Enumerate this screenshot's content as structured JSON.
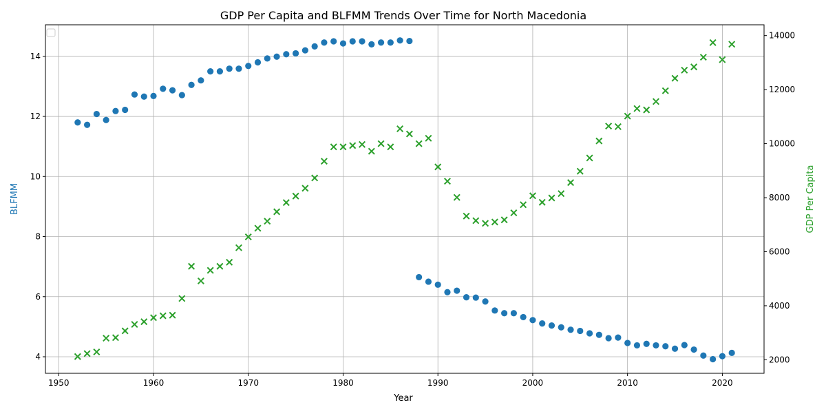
{
  "chart_data": {
    "type": "scatter",
    "title": "GDP Per Capita and BLFMM Trends Over Time for North Macedonia",
    "xlabel": "Year",
    "ylabel_left": "BLFMM",
    "ylabel_right": "GDP Per Capita",
    "xlim": [
      1948.6,
      2024.4
    ],
    "ylim_left": [
      3.45,
      15.05
    ],
    "ylim_right": [
      1500,
      14400
    ],
    "x_ticks": [
      1950,
      1960,
      1970,
      1980,
      1990,
      2000,
      2010,
      2020
    ],
    "y_ticks_left": [
      4,
      6,
      8,
      10,
      12,
      14
    ],
    "y_ticks_right": [
      2000,
      4000,
      6000,
      8000,
      10000,
      12000,
      14000
    ],
    "grid": true,
    "legend": "top-left",
    "colors": {
      "blfmm": "#1f77b4",
      "gdp": "#2ca02c",
      "grid": "#b0b0b0"
    },
    "series": [
      {
        "axis": "left",
        "marker": "circle",
        "points": [
          [
            1952,
            11.8
          ],
          [
            1953,
            11.72
          ],
          [
            1954,
            12.08
          ],
          [
            1955,
            11.88
          ],
          [
            1956,
            12.18
          ],
          [
            1957,
            12.22
          ],
          [
            1958,
            12.73
          ],
          [
            1959,
            12.66
          ],
          [
            1960,
            12.68
          ],
          [
            1961,
            12.92
          ],
          [
            1962,
            12.87
          ],
          [
            1963,
            12.71
          ],
          [
            1964,
            13.05
          ],
          [
            1965,
            13.2
          ],
          [
            1966,
            13.5
          ],
          [
            1967,
            13.5
          ],
          [
            1968,
            13.59
          ],
          [
            1969,
            13.59
          ],
          [
            1970,
            13.68
          ],
          [
            1971,
            13.8
          ],
          [
            1972,
            13.93
          ],
          [
            1973,
            13.99
          ],
          [
            1974,
            14.07
          ],
          [
            1975,
            14.1
          ],
          [
            1976,
            14.2
          ],
          [
            1977,
            14.33
          ],
          [
            1978,
            14.46
          ],
          [
            1979,
            14.5
          ],
          [
            1980,
            14.43
          ],
          [
            1981,
            14.5
          ],
          [
            1982,
            14.5
          ],
          [
            1983,
            14.4
          ],
          [
            1984,
            14.46
          ],
          [
            1985,
            14.46
          ],
          [
            1986,
            14.53
          ],
          [
            1987,
            14.51
          ],
          [
            1988,
            6.65
          ],
          [
            1989,
            6.5
          ],
          [
            1990,
            6.4
          ],
          [
            1991,
            6.15
          ],
          [
            1992,
            6.2
          ],
          [
            1993,
            5.98
          ],
          [
            1994,
            5.97
          ],
          [
            1995,
            5.84
          ],
          [
            1996,
            5.54
          ],
          [
            1997,
            5.45
          ],
          [
            1998,
            5.45
          ],
          [
            1999,
            5.32
          ],
          [
            2000,
            5.22
          ],
          [
            2001,
            5.11
          ],
          [
            2002,
            5.04
          ],
          [
            2003,
            4.98
          ],
          [
            2004,
            4.9
          ],
          [
            2005,
            4.86
          ],
          [
            2006,
            4.78
          ],
          [
            2007,
            4.73
          ],
          [
            2008,
            4.62
          ],
          [
            2009,
            4.64
          ],
          [
            2010,
            4.46
          ],
          [
            2011,
            4.38
          ],
          [
            2012,
            4.43
          ],
          [
            2013,
            4.38
          ],
          [
            2014,
            4.35
          ],
          [
            2015,
            4.27
          ],
          [
            2016,
            4.39
          ],
          [
            2017,
            4.24
          ],
          [
            2018,
            4.04
          ],
          [
            2019,
            3.92
          ],
          [
            2020,
            4.02
          ],
          [
            2021,
            4.13
          ]
        ]
      },
      {
        "axis": "right",
        "marker": "x",
        "points": [
          [
            1952,
            2120
          ],
          [
            1953,
            2230
          ],
          [
            1954,
            2290
          ],
          [
            1955,
            2800
          ],
          [
            1956,
            2820
          ],
          [
            1957,
            3070
          ],
          [
            1958,
            3310
          ],
          [
            1959,
            3410
          ],
          [
            1960,
            3560
          ],
          [
            1961,
            3630
          ],
          [
            1962,
            3650
          ],
          [
            1963,
            4270
          ],
          [
            1964,
            5460
          ],
          [
            1965,
            4920
          ],
          [
            1966,
            5310
          ],
          [
            1967,
            5460
          ],
          [
            1968,
            5610
          ],
          [
            1969,
            6150
          ],
          [
            1970,
            6550
          ],
          [
            1971,
            6870
          ],
          [
            1972,
            7130
          ],
          [
            1973,
            7480
          ],
          [
            1974,
            7820
          ],
          [
            1975,
            8060
          ],
          [
            1976,
            8350
          ],
          [
            1977,
            8730
          ],
          [
            1978,
            9350
          ],
          [
            1979,
            9880
          ],
          [
            1980,
            9880
          ],
          [
            1981,
            9930
          ],
          [
            1982,
            9970
          ],
          [
            1983,
            9720
          ],
          [
            1984,
            10000
          ],
          [
            1985,
            9880
          ],
          [
            1986,
            10550
          ],
          [
            1987,
            10360
          ],
          [
            1988,
            10000
          ],
          [
            1989,
            10200
          ],
          [
            1990,
            9140
          ],
          [
            1991,
            8610
          ],
          [
            1992,
            8010
          ],
          [
            1993,
            7320
          ],
          [
            1994,
            7150
          ],
          [
            1995,
            7050
          ],
          [
            1996,
            7100
          ],
          [
            1997,
            7180
          ],
          [
            1998,
            7440
          ],
          [
            1999,
            7740
          ],
          [
            2000,
            8070
          ],
          [
            2001,
            7830
          ],
          [
            2002,
            7990
          ],
          [
            2003,
            8150
          ],
          [
            2004,
            8560
          ],
          [
            2005,
            8980
          ],
          [
            2006,
            9470
          ],
          [
            2007,
            10100
          ],
          [
            2008,
            10650
          ],
          [
            2009,
            10630
          ],
          [
            2010,
            11020
          ],
          [
            2011,
            11300
          ],
          [
            2012,
            11250
          ],
          [
            2013,
            11560
          ],
          [
            2014,
            11960
          ],
          [
            2015,
            12420
          ],
          [
            2016,
            12720
          ],
          [
            2017,
            12840
          ],
          [
            2018,
            13200
          ],
          [
            2019,
            13740
          ],
          [
            2020,
            13110
          ],
          [
            2021,
            13680
          ]
        ]
      }
    ]
  }
}
